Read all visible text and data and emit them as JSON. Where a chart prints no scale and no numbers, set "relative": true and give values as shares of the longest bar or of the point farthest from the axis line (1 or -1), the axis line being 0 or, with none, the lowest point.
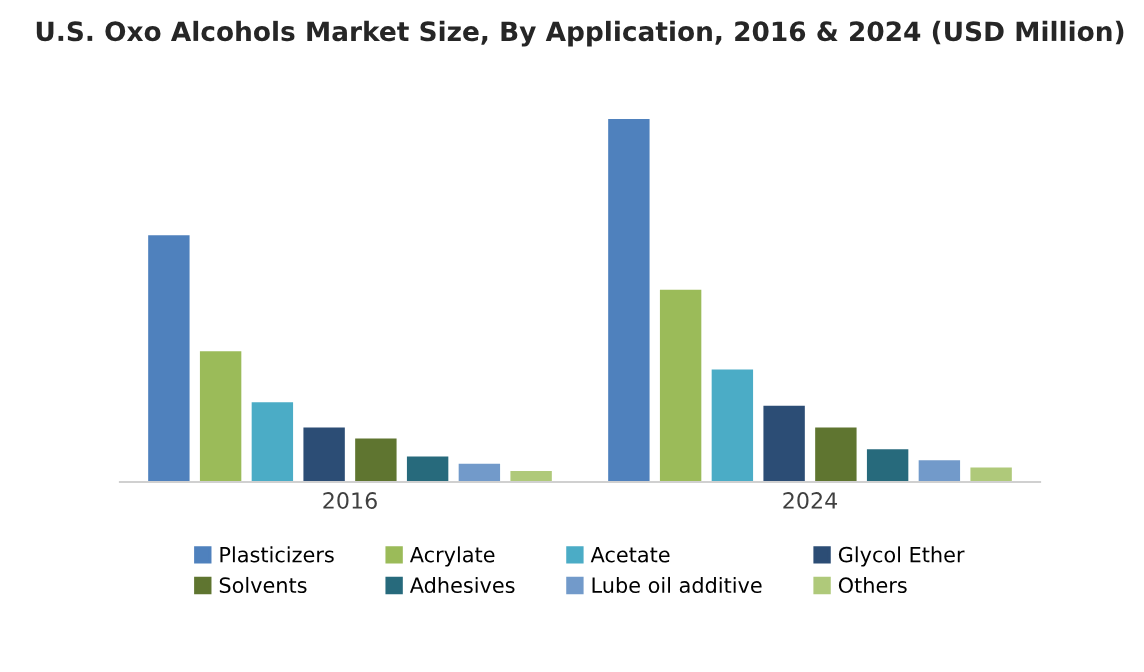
{
  "chart_data": {
    "type": "bar",
    "title": "U.S. Oxo Alcohols Market Size, By Application, 2016 & 2024 (USD Million)",
    "categories": [
      "2016",
      "2024"
    ],
    "relative": true,
    "legend": "bottom",
    "series": [
      {
        "name": "Plasticizers",
        "color": "#4f81bd",
        "values": [
          0.68,
          1
        ]
      },
      {
        "name": "Acrylate",
        "color": "#9bbb59",
        "values": [
          0.36,
          0.53
        ]
      },
      {
        "name": "Acetate",
        "color": "#4bacc6",
        "values": [
          0.22,
          0.31
        ]
      },
      {
        "name": "Glycol Ether",
        "color": "#2c4d75",
        "values": [
          0.15,
          0.21
        ]
      },
      {
        "name": "Solvents",
        "color": "#5f7530",
        "values": [
          0.12,
          0.15
        ]
      },
      {
        "name": "Adhesives",
        "color": "#276a7c",
        "values": [
          0.07,
          0.09
        ]
      },
      {
        "name": "Lube oil additive",
        "color": "#729aca",
        "values": [
          0.05,
          0.06
        ]
      },
      {
        "name": "Others",
        "color": "#afc97a",
        "values": [
          0.03,
          0.04
        ]
      }
    ]
  }
}
